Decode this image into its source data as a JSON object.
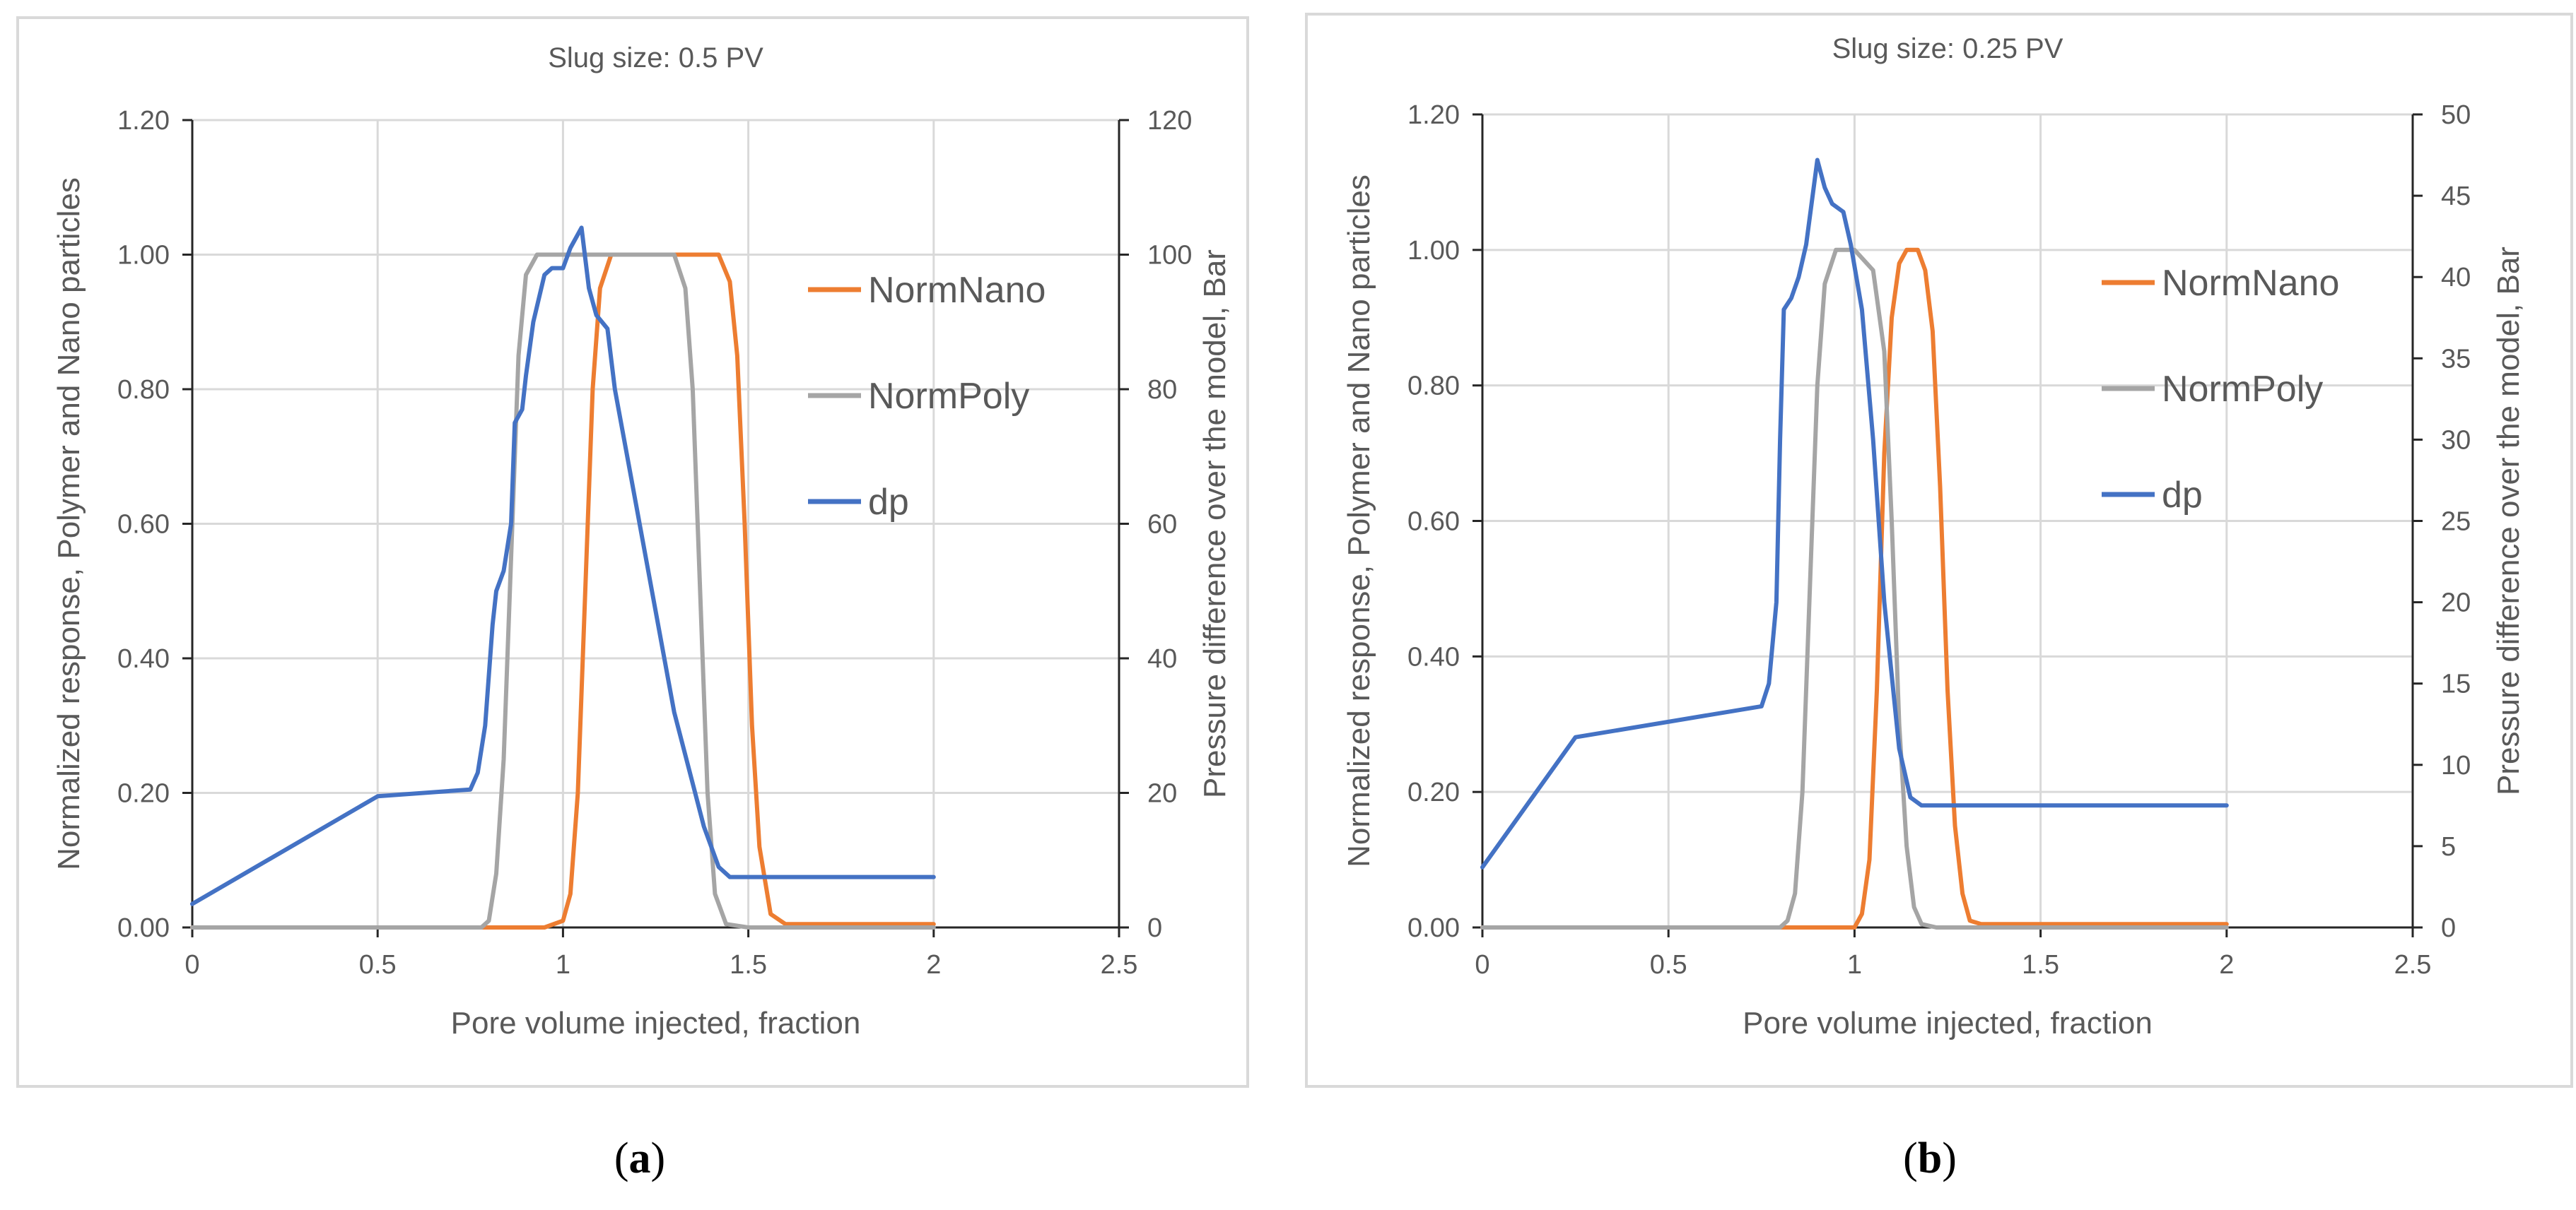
{
  "figure": {
    "caption_a": "a",
    "caption_b": "b"
  },
  "chart_data": [
    {
      "type": "line",
      "panel": "a",
      "title": "Slug size: 0.5 PV",
      "xlabel": "Pore volume injected, fraction",
      "ylabel": "Normalized response, Polymer and Nano particles",
      "y2label": "Pressure difference over the model, Bar",
      "xlim": [
        0,
        2.5
      ],
      "ylim": [
        0,
        1.2
      ],
      "y2lim": [
        0,
        120
      ],
      "xticks": [
        0,
        0.5,
        1,
        1.5,
        2,
        2.5
      ],
      "xtick_labels": [
        "0",
        "0.5",
        "1",
        "1.5",
        "2",
        "2.5"
      ],
      "yticks": [
        0,
        0.2,
        0.4,
        0.6,
        0.8,
        1.0,
        1.2
      ],
      "ytick_labels": [
        "0.00",
        "0.20",
        "0.40",
        "0.60",
        "0.80",
        "1.00",
        "1.20"
      ],
      "y2ticks": [
        0,
        20,
        40,
        60,
        80,
        100,
        120
      ],
      "y2tick_labels": [
        "0",
        "20",
        "40",
        "60",
        "80",
        "100",
        "120"
      ],
      "grid": true,
      "legend_position": "right",
      "series": [
        {
          "name": "NormNano",
          "axis": "left",
          "color": "#ED7D31",
          "x": [
            0,
            0.95,
            1.0,
            1.02,
            1.04,
            1.06,
            1.08,
            1.1,
            1.13,
            1.2,
            1.42,
            1.45,
            1.47,
            1.49,
            1.51,
            1.53,
            1.56,
            1.6,
            2.0
          ],
          "y": [
            0,
            0,
            0.01,
            0.05,
            0.2,
            0.5,
            0.8,
            0.95,
            1.0,
            1.0,
            1.0,
            0.96,
            0.85,
            0.6,
            0.3,
            0.12,
            0.02,
            0.005,
            0.005
          ]
        },
        {
          "name": "NormPoly",
          "axis": "left",
          "color": "#A5A5A5",
          "x": [
            0,
            0.78,
            0.8,
            0.82,
            0.84,
            0.86,
            0.88,
            0.9,
            0.93,
            0.97,
            1.3,
            1.33,
            1.35,
            1.37,
            1.39,
            1.41,
            1.44,
            1.5,
            2.0
          ],
          "y": [
            0,
            0,
            0.01,
            0.08,
            0.25,
            0.55,
            0.85,
            0.97,
            1.0,
            1.0,
            1.0,
            0.95,
            0.8,
            0.5,
            0.2,
            0.05,
            0.005,
            0,
            0
          ]
        },
        {
          "name": "dp",
          "axis": "right",
          "color": "#4472C4",
          "x": [
            0,
            0.5,
            0.75,
            0.77,
            0.79,
            0.81,
            0.82,
            0.84,
            0.86,
            0.87,
            0.89,
            0.9,
            0.92,
            0.95,
            0.97,
            1.0,
            1.02,
            1.05,
            1.07,
            1.09,
            1.12,
            1.14,
            1.18,
            1.3,
            1.38,
            1.42,
            1.45,
            1.5,
            2.0
          ],
          "y": [
            3.5,
            19.5,
            20.5,
            23,
            30,
            45,
            50,
            53,
            60,
            75,
            77,
            82,
            90,
            97,
            98,
            98,
            101,
            104,
            95,
            91,
            89,
            80,
            68,
            32,
            15,
            9,
            7.5,
            7.5,
            7.5
          ]
        }
      ]
    },
    {
      "type": "line",
      "panel": "b",
      "title": "Slug size: 0.25 PV",
      "xlabel": "Pore volume injected, fraction",
      "ylabel": "Normalized response, Polymer and Nano particles",
      "y2label": "Pressure difference over the model, Bar",
      "xlim": [
        0,
        2.5
      ],
      "ylim": [
        0,
        1.2
      ],
      "y2lim": [
        0,
        50
      ],
      "xticks": [
        0,
        0.5,
        1,
        1.5,
        2,
        2.5
      ],
      "xtick_labels": [
        "0",
        "0.5",
        "1",
        "1.5",
        "2",
        "2.5"
      ],
      "yticks": [
        0,
        0.2,
        0.4,
        0.6,
        0.8,
        1.0,
        1.2
      ],
      "ytick_labels": [
        "0.00",
        "0.20",
        "0.40",
        "0.60",
        "0.80",
        "1.00",
        "1.20"
      ],
      "y2ticks": [
        0,
        5,
        10,
        15,
        20,
        25,
        30,
        35,
        40,
        45,
        50
      ],
      "y2tick_labels": [
        "0",
        "5",
        "10",
        "15",
        "20",
        "25",
        "30",
        "35",
        "40",
        "45",
        "50"
      ],
      "grid": true,
      "legend_position": "right",
      "series": [
        {
          "name": "NormNano",
          "axis": "left",
          "color": "#ED7D31",
          "x": [
            0,
            1.0,
            1.02,
            1.04,
            1.06,
            1.08,
            1.1,
            1.12,
            1.14,
            1.17,
            1.19,
            1.21,
            1.23,
            1.25,
            1.27,
            1.29,
            1.31,
            1.34,
            2.0
          ],
          "y": [
            0,
            0,
            0.02,
            0.1,
            0.35,
            0.7,
            0.9,
            0.98,
            1.0,
            1.0,
            0.97,
            0.88,
            0.65,
            0.35,
            0.15,
            0.05,
            0.01,
            0.005,
            0.005
          ]
        },
        {
          "name": "NormPoly",
          "axis": "left",
          "color": "#A5A5A5",
          "x": [
            0,
            0.8,
            0.82,
            0.84,
            0.86,
            0.88,
            0.9,
            0.92,
            0.95,
            1.0,
            1.05,
            1.08,
            1.1,
            1.12,
            1.14,
            1.16,
            1.18,
            1.22,
            2.0
          ],
          "y": [
            0,
            0,
            0.01,
            0.05,
            0.2,
            0.5,
            0.8,
            0.95,
            1.0,
            1.0,
            0.97,
            0.85,
            0.6,
            0.3,
            0.12,
            0.03,
            0.005,
            0,
            0
          ]
        },
        {
          "name": "dp",
          "axis": "right",
          "color": "#4472C4",
          "x": [
            0,
            0.25,
            0.75,
            0.77,
            0.79,
            0.8,
            0.81,
            0.83,
            0.85,
            0.87,
            0.9,
            0.92,
            0.94,
            0.97,
            0.99,
            1.02,
            1.05,
            1.08,
            1.12,
            1.15,
            1.18,
            1.22,
            2.0
          ],
          "y": [
            3.7,
            11.7,
            13.6,
            15,
            20,
            30,
            38,
            38.7,
            40,
            42,
            47.2,
            45.5,
            44.5,
            44,
            42,
            38,
            30,
            20,
            11,
            8,
            7.5,
            7.5,
            7.5
          ]
        }
      ]
    }
  ]
}
